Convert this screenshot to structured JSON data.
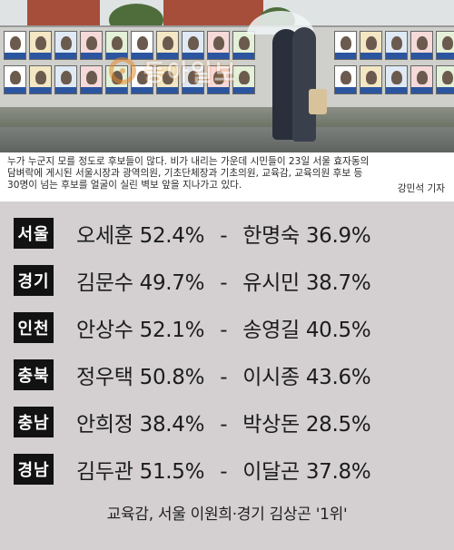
{
  "photo": {
    "watermark": "동아일보",
    "colors": {
      "wall": "#cfcfcb",
      "brick": "#a64e3a",
      "watermark": "#e58a2a"
    }
  },
  "caption": {
    "lines": [
      "누가 누군지 모를 정도로 후보들이 많다. 비가 내리는 가운데 시민들이 23일 서울 효자동의",
      "담벼락에 게시된 서울시장과 광역의원, 기초단체장과 기초의원, 교육감, 교육의원 후보 등",
      "30명이 넘는 후보를 얼굴이 실린 벽보 앞을 지나가고 있다."
    ],
    "byline": "강민석 기자"
  },
  "results": [
    {
      "region": "서울",
      "winner": "오세훈",
      "winner_pct": "52.4%",
      "dash": "-",
      "runner": "한명숙",
      "runner_pct": "36.9%"
    },
    {
      "region": "경기",
      "winner": "김문수",
      "winner_pct": "49.7%",
      "dash": "-",
      "runner": "유시민",
      "runner_pct": "38.7%"
    },
    {
      "region": "인천",
      "winner": "안상수",
      "winner_pct": "52.1%",
      "dash": "-",
      "runner": "송영길",
      "runner_pct": "40.5%"
    },
    {
      "region": "충북",
      "winner": "정우택",
      "winner_pct": "50.8%",
      "dash": "-",
      "runner": "이시종",
      "runner_pct": "43.6%"
    },
    {
      "region": "충남",
      "winner": "안희정",
      "winner_pct": "38.4%",
      "dash": "-",
      "runner": "박상돈",
      "runner_pct": "28.5%"
    },
    {
      "region": "경남",
      "winner": "김두관",
      "winner_pct": "51.5%",
      "dash": "-",
      "runner": "이달곤",
      "runner_pct": "37.8%"
    }
  ],
  "education_note": "교육감, 서울 이원희·경기 김상곤 '1위'",
  "colors": {
    "panel_bg": "#d4d0d1",
    "region_badge_bg": "#121212",
    "region_badge_text": "#ffffff",
    "text": "#1c1c1c"
  }
}
